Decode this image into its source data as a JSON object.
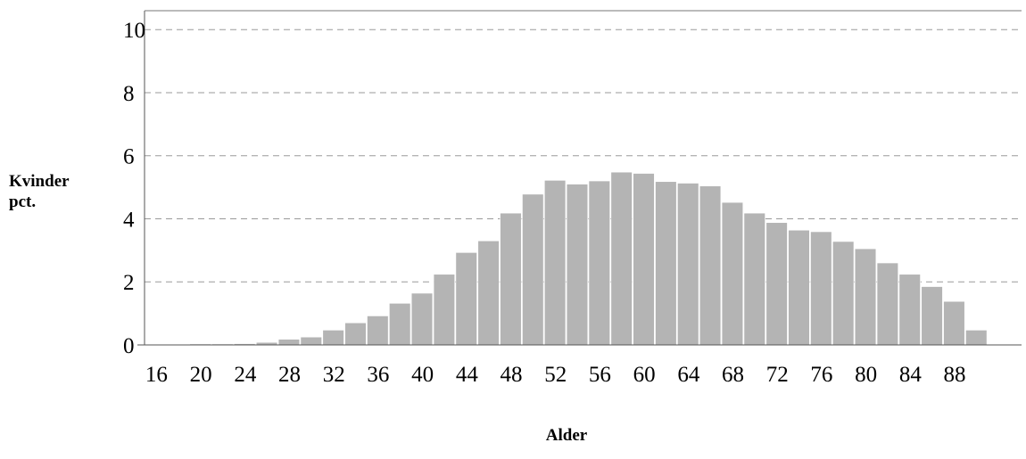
{
  "chart_data": {
    "type": "bar",
    "xlabel": "Alder",
    "ylabel_lines": [
      "Kvinder",
      "pct."
    ],
    "ylim": [
      0,
      10.6
    ],
    "yticks": [
      0,
      2,
      4,
      6,
      8,
      10
    ],
    "xtick_labels": [
      "16",
      "20",
      "24",
      "28",
      "32",
      "36",
      "40",
      "44",
      "48",
      "52",
      "56",
      "60",
      "64",
      "68",
      "72",
      "76",
      "80",
      "84",
      "88"
    ],
    "grid": true,
    "bar_color": "#b4b4b4",
    "series": [
      {
        "x": [
          16,
          18,
          20,
          22,
          24,
          26,
          28,
          30,
          32,
          34,
          36,
          38,
          40,
          42,
          44,
          46,
          48,
          50,
          52,
          54,
          56,
          58,
          60,
          62,
          64,
          66,
          68,
          70,
          72,
          74,
          76,
          78,
          80,
          82,
          84,
          86,
          88,
          90
        ],
        "values": [
          0.02,
          0.02,
          0.03,
          0.03,
          0.04,
          0.08,
          0.18,
          0.25,
          0.47,
          0.7,
          0.92,
          1.32,
          1.64,
          2.24,
          2.93,
          3.3,
          4.18,
          4.78,
          5.22,
          5.1,
          5.2,
          5.48,
          5.44,
          5.18,
          5.13,
          5.04,
          4.52,
          4.18,
          3.88,
          3.64,
          3.59,
          3.28,
          3.05,
          2.6,
          2.24,
          1.85,
          1.38,
          0.47
        ]
      }
    ]
  }
}
